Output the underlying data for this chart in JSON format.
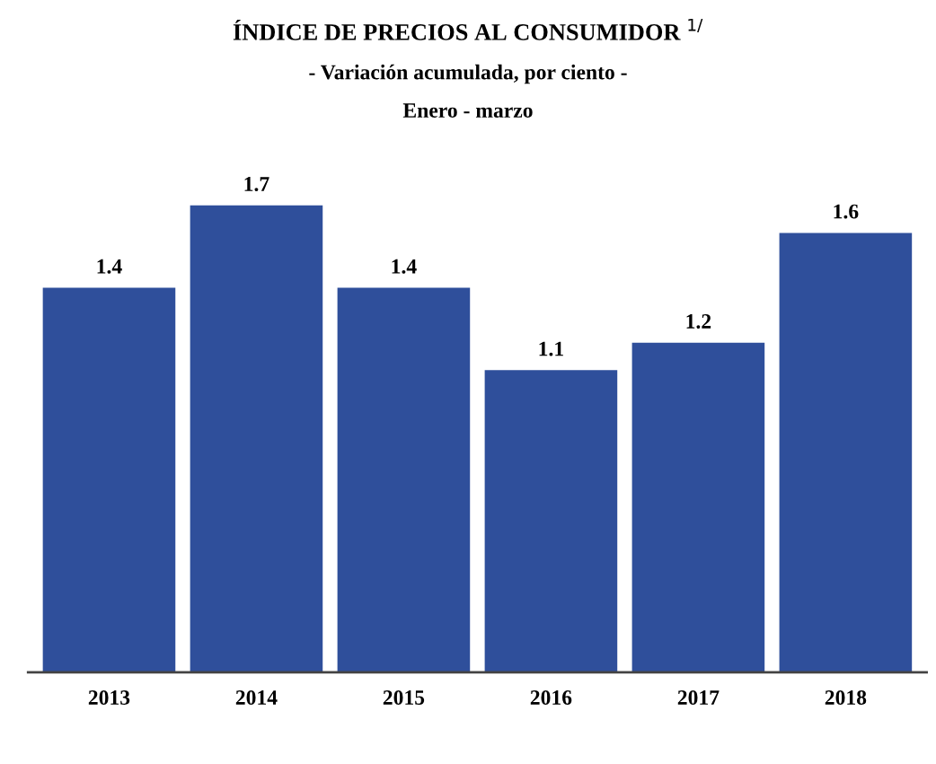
{
  "chart_data": {
    "type": "bar",
    "title": "ÍNDICE DE PRECIOS AL CONSUMIDOR $^{1/}$",
    "subtitle": "- Variación acumulada, por ciento -",
    "annotations": [
      "Enero - marzo"
    ],
    "categories": [
      "2013",
      "2014",
      "2015",
      "2016",
      "2017",
      "2018"
    ],
    "values": [
      1.4,
      1.7,
      1.4,
      1.1,
      1.2,
      1.6
    ],
    "color": "#2f4f9b",
    "data_labels": true,
    "grid": false,
    "legend": false
  }
}
